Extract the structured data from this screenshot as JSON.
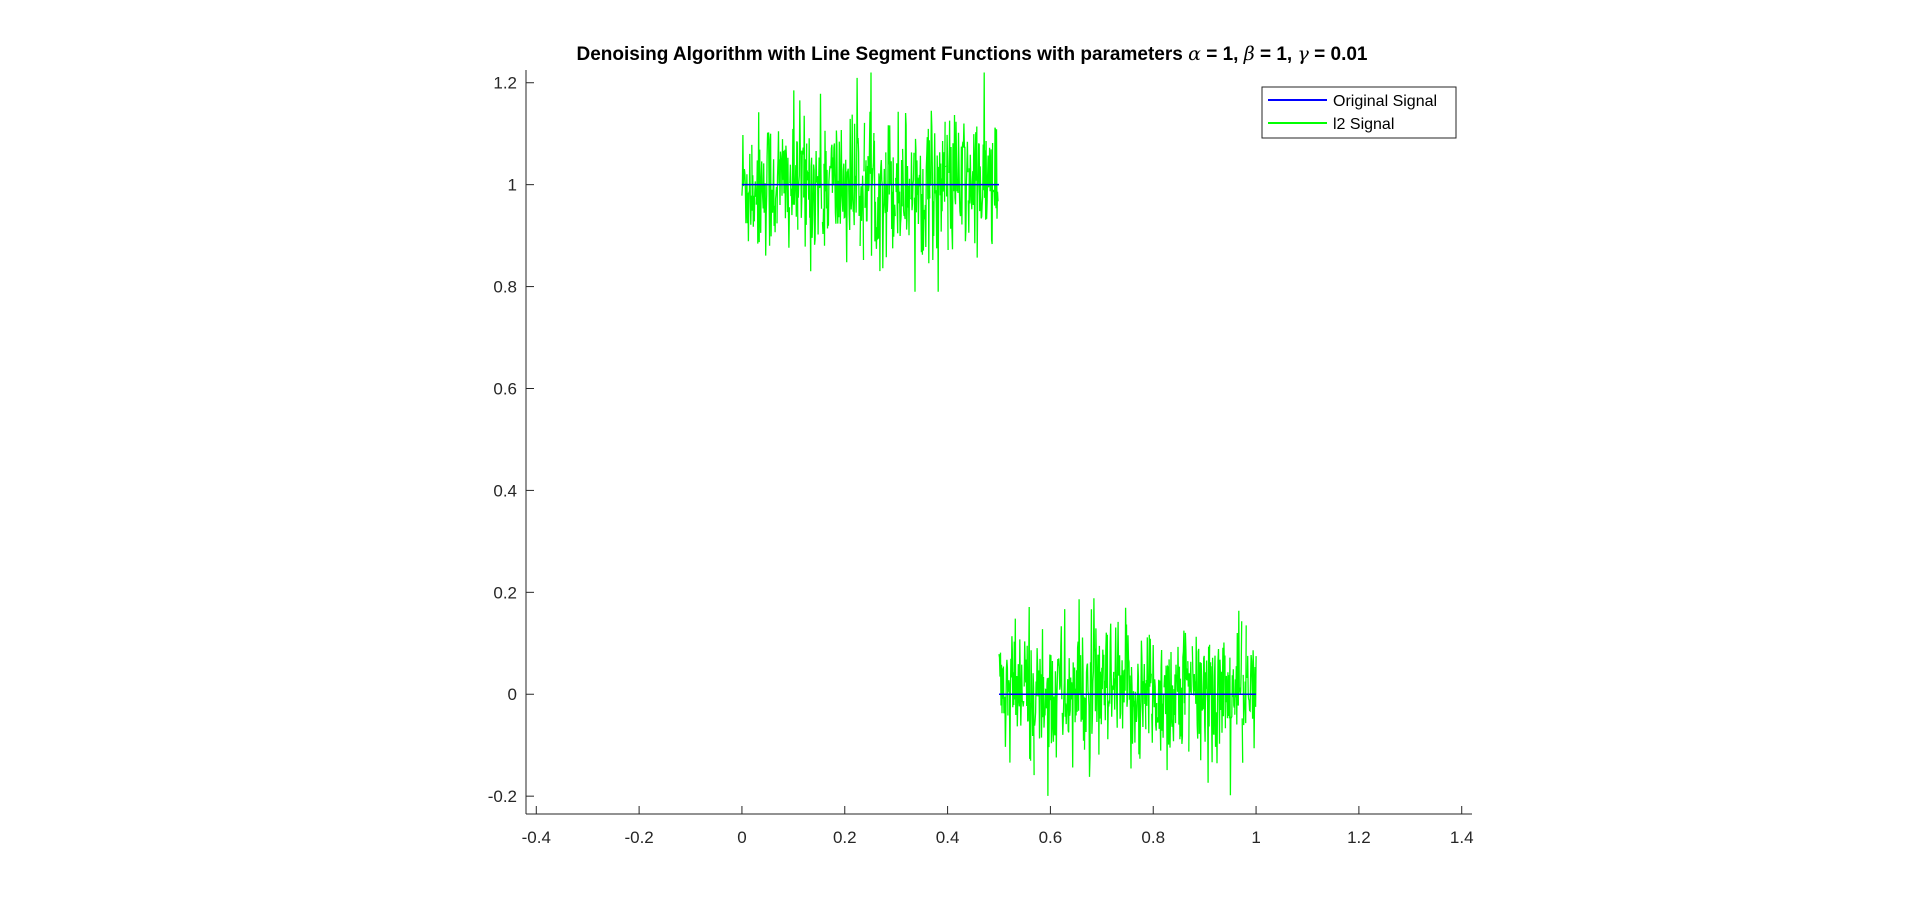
{
  "chart_data": {
    "type": "line",
    "title": {
      "prefix": "Denoising Algorithm with Line Segment Functions with parameters ",
      "alpha_symbol": "α",
      "alpha_value": " = 1, ",
      "beta_symbol": "β",
      "beta_value": " = 1, ",
      "gamma_symbol": "γ",
      "gamma_value": " = 0.01"
    },
    "xlabel": "",
    "ylabel": "",
    "xlim": [
      -0.42,
      1.42
    ],
    "ylim": [
      -0.235,
      1.225
    ],
    "x_ticks": [
      -0.4,
      -0.2,
      0,
      0.2,
      0.4,
      0.6,
      0.8,
      1,
      1.2,
      1.4
    ],
    "x_tick_labels": [
      "-0.4",
      "-0.2",
      "0",
      "0.2",
      "0.4",
      "0.6",
      "0.8",
      "1",
      "1.2",
      "1.4"
    ],
    "y_ticks": [
      -0.2,
      0,
      0.2,
      0.4,
      0.6,
      0.8,
      1,
      1.2
    ],
    "y_tick_labels": [
      "-0.2",
      "0",
      "0.2",
      "0.4",
      "0.6",
      "0.8",
      "1",
      "1.2"
    ],
    "grid": false,
    "legend_position": "top-right",
    "series": [
      {
        "name": "Original Signal",
        "color": "#0000ff",
        "segments": [
          {
            "x": [
              0,
              0.5
            ],
            "y": [
              1,
              1
            ]
          },
          {
            "x": [
              0.5,
              1
            ],
            "y": [
              0,
              0
            ]
          }
        ]
      },
      {
        "name": "l2 Signal",
        "color": "#00ff00",
        "noise": {
          "segments": [
            {
              "x_range": [
                0,
                0.5
              ],
              "level": 1,
              "approx_min": 0.79,
              "approx_max": 1.22
            },
            {
              "x_range": [
                0.5,
                1
              ],
              "level": 0,
              "approx_min": -0.235,
              "approx_max": 0.24
            }
          ],
          "approx_std": 0.07
        }
      }
    ]
  }
}
